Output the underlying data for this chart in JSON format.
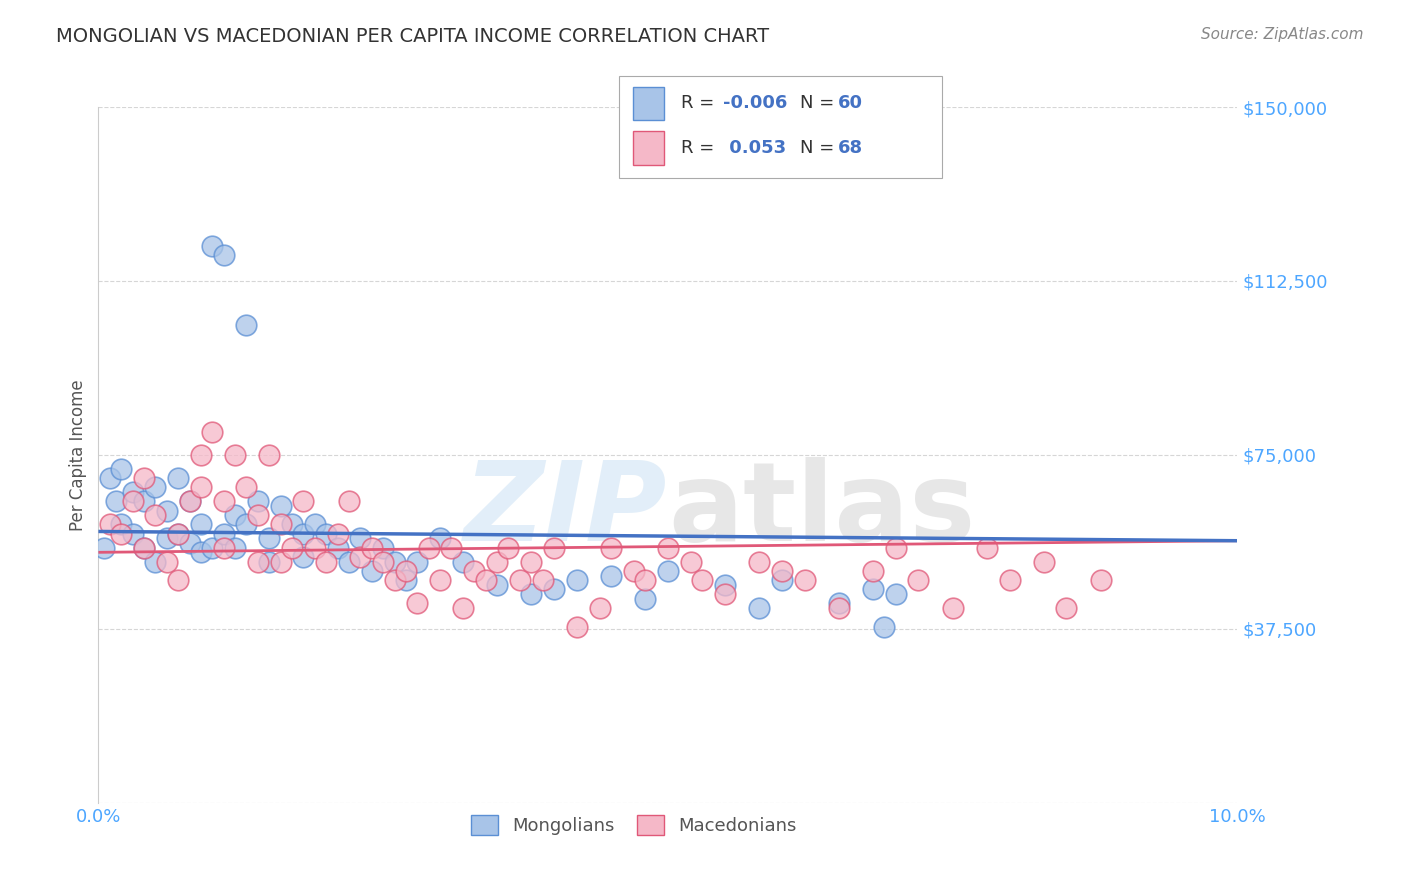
{
  "title": "MONGOLIAN VS MACEDONIAN PER CAPITA INCOME CORRELATION CHART",
  "source": "Source: ZipAtlas.com",
  "ylabel": "Per Capita Income",
  "yticks": [
    0,
    37500,
    75000,
    112500,
    150000
  ],
  "ytick_labels": [
    "",
    "$37,500",
    "$75,000",
    "$112,500",
    "$150,000"
  ],
  "xlim": [
    0.0,
    0.1
  ],
  "ylim": [
    0,
    150000
  ],
  "watermark": "ZIPatlas",
  "color_mongolian_face": "#a8c4e8",
  "color_mongolian_edge": "#5b8fd4",
  "color_macedonian_face": "#f5b8c8",
  "color_macedonian_edge": "#e05878",
  "color_line_mongolian": "#4472c4",
  "color_line_macedonian": "#e05878",
  "color_axis_ticks": "#4da6ff",
  "color_ytick_labels": "#4da6ff",
  "background_color": "#ffffff",
  "grid_color": "#cccccc",
  "title_color": "#333333",
  "source_color": "#888888",
  "mongolian_x": [
    0.0005,
    0.001,
    0.0015,
    0.002,
    0.002,
    0.003,
    0.003,
    0.004,
    0.004,
    0.005,
    0.005,
    0.006,
    0.006,
    0.007,
    0.007,
    0.008,
    0.008,
    0.009,
    0.009,
    0.01,
    0.01,
    0.011,
    0.011,
    0.012,
    0.012,
    0.013,
    0.013,
    0.014,
    0.015,
    0.015,
    0.016,
    0.017,
    0.018,
    0.018,
    0.019,
    0.02,
    0.021,
    0.022,
    0.023,
    0.024,
    0.025,
    0.026,
    0.027,
    0.028,
    0.03,
    0.032,
    0.035,
    0.038,
    0.04,
    0.042,
    0.045,
    0.048,
    0.05,
    0.055,
    0.058,
    0.06,
    0.065,
    0.068,
    0.069,
    0.07
  ],
  "mongolian_y": [
    55000,
    70000,
    65000,
    72000,
    60000,
    67000,
    58000,
    65000,
    55000,
    68000,
    52000,
    63000,
    57000,
    70000,
    58000,
    65000,
    56000,
    60000,
    54000,
    55000,
    120000,
    118000,
    58000,
    62000,
    55000,
    103000,
    60000,
    65000,
    57000,
    52000,
    64000,
    60000,
    58000,
    53000,
    60000,
    58000,
    55000,
    52000,
    57000,
    50000,
    55000,
    52000,
    48000,
    52000,
    57000,
    52000,
    47000,
    45000,
    46000,
    48000,
    49000,
    44000,
    50000,
    47000,
    42000,
    48000,
    43000,
    46000,
    38000,
    45000
  ],
  "macedonian_x": [
    0.001,
    0.002,
    0.003,
    0.004,
    0.004,
    0.005,
    0.006,
    0.007,
    0.007,
    0.008,
    0.009,
    0.009,
    0.01,
    0.011,
    0.011,
    0.012,
    0.013,
    0.014,
    0.014,
    0.015,
    0.016,
    0.016,
    0.017,
    0.018,
    0.019,
    0.02,
    0.021,
    0.022,
    0.023,
    0.024,
    0.025,
    0.026,
    0.027,
    0.028,
    0.029,
    0.03,
    0.031,
    0.032,
    0.033,
    0.034,
    0.035,
    0.036,
    0.037,
    0.038,
    0.039,
    0.04,
    0.042,
    0.044,
    0.045,
    0.047,
    0.048,
    0.05,
    0.052,
    0.053,
    0.055,
    0.058,
    0.06,
    0.062,
    0.065,
    0.068,
    0.07,
    0.072,
    0.075,
    0.078,
    0.08,
    0.083,
    0.085,
    0.088
  ],
  "macedonian_y": [
    60000,
    58000,
    65000,
    55000,
    70000,
    62000,
    52000,
    58000,
    48000,
    65000,
    75000,
    68000,
    80000,
    55000,
    65000,
    75000,
    68000,
    62000,
    52000,
    75000,
    60000,
    52000,
    55000,
    65000,
    55000,
    52000,
    58000,
    65000,
    53000,
    55000,
    52000,
    48000,
    50000,
    43000,
    55000,
    48000,
    55000,
    42000,
    50000,
    48000,
    52000,
    55000,
    48000,
    52000,
    48000,
    55000,
    38000,
    42000,
    55000,
    50000,
    48000,
    55000,
    52000,
    48000,
    45000,
    52000,
    50000,
    48000,
    42000,
    50000,
    55000,
    48000,
    42000,
    55000,
    48000,
    52000,
    42000,
    48000
  ],
  "mon_trend_x0": 0.0,
  "mon_trend_y0": 58500,
  "mon_trend_x1": 0.1,
  "mon_trend_y1": 56500,
  "mac_trend_x0": 0.0,
  "mac_trend_y0": 54000,
  "mac_trend_x1": 0.1,
  "mac_trend_y1": 56500
}
